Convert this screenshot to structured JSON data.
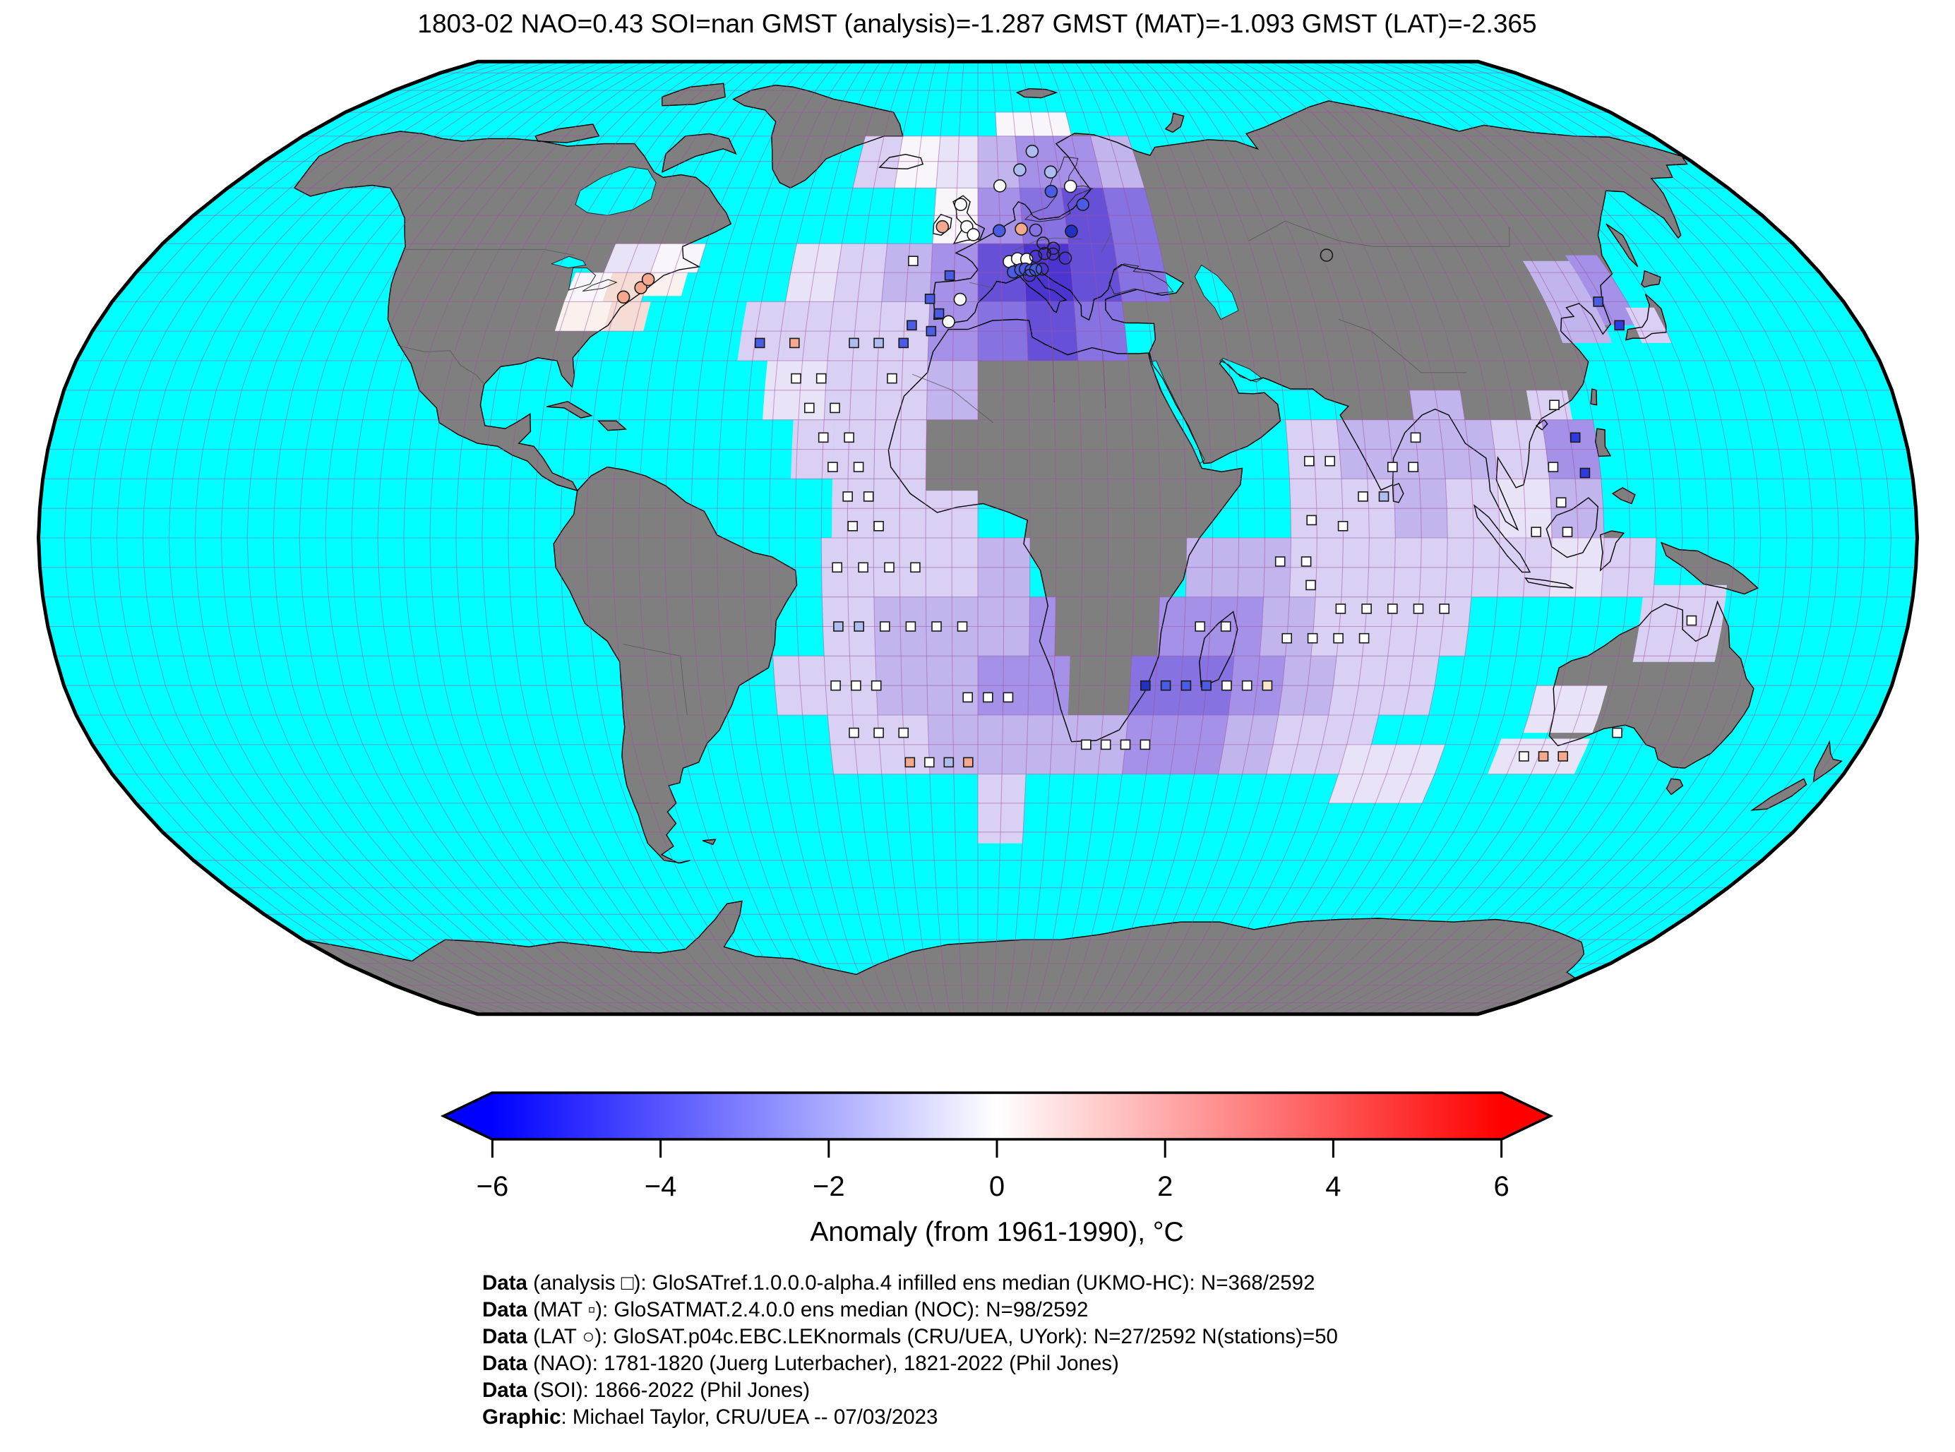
{
  "title": "1803-02 NAO=0.43 SOI=nan GMST (analysis)=-1.287 GMST (MAT)=-1.093 GMST (LAT)=-2.365",
  "key_values": {
    "date": "1803-02",
    "nao": "0.43",
    "soi": "nan",
    "gmst_analysis": "-1.287",
    "gmst_mat": "-1.093",
    "gmst_lat": "-2.365"
  },
  "colorbar": {
    "label": "Anomaly (from 1961-1990), °C",
    "ticks": [
      "−6",
      "−4",
      "−2",
      "0",
      "2",
      "4",
      "6"
    ],
    "tick_values": [
      -6,
      -4,
      -2,
      0,
      2,
      4,
      6
    ],
    "range": [
      -6,
      6
    ],
    "color_neg": "#0000ff",
    "color_mid": "#ffffff",
    "color_pos": "#ff0000"
  },
  "credits": [
    {
      "bold": "Data",
      "rest": " (analysis □): GloSATref.1.0.0.0-alpha.4 infilled ens median (UKMO-HC): N=368/2592"
    },
    {
      "bold": "Data",
      "rest": " (MAT ▫): GloSATMAT.2.4.0.0 ens median (NOC): N=98/2592"
    },
    {
      "bold": "Data",
      "rest": " (LAT ○): GloSAT.p04c.EBC.LEKnormals (CRU/UEA, UYork): N=27/2592 N(stations)=50"
    },
    {
      "bold": "Data",
      "rest": " (NAO): 1781-1820 (Juerg Luterbacher), 1821-2022 (Phil Jones)"
    },
    {
      "bold": "Data",
      "rest": " (SOI): 1866-2022 (Phil Jones)"
    },
    {
      "bold": "Graphic",
      "rest": ": Michael Taylor, CRU/UEA -- 07/03/2023"
    }
  ],
  "map": {
    "projection": "Robinson",
    "ocean_color": "#00ffff",
    "land_color": "#7f7f7f",
    "coast_color": "#000000",
    "grid_color": "#a04fa0",
    "border_color": "#555555",
    "grid_step_deg": 5,
    "palette": {
      "L1": "#e9e3f8",
      "L2": "#d9d0f3",
      "L3": "#c2b5ee",
      "L4": "#a591e8",
      "L5": "#8672e0",
      "L6": "#6750d8",
      "L7": "#4c34d0",
      "W": "#f8f5fb",
      "P1": "#faf0ee",
      "P2": "#f5dcd5",
      "P3": "#f2cabe"
    },
    "marker_fills": {
      "w": "#ffffff",
      "lb": "#aebcf2",
      "b": "#4a5be4",
      "bb": "#2e3be0",
      "db": "#2430c0",
      "s": "#f4a98e",
      "c": "#f8e7c9",
      "o": "none"
    },
    "cells": [
      [
        -30,
        60,
        10,
        10,
        "L2"
      ],
      [
        -20,
        60,
        10,
        10,
        "W"
      ],
      [
        -10,
        60,
        10,
        10,
        "L1"
      ],
      [
        0,
        60,
        10,
        10,
        "L3"
      ],
      [
        10,
        60,
        10,
        10,
        "L4"
      ],
      [
        20,
        60,
        10,
        10,
        "L4"
      ],
      [
        30,
        60,
        10,
        10,
        "L3"
      ],
      [
        5,
        70,
        10,
        5,
        "W"
      ],
      [
        15,
        70,
        10,
        5,
        "W"
      ],
      [
        -10,
        50,
        10,
        10,
        "W"
      ],
      [
        0,
        50,
        10,
        10,
        "L4"
      ],
      [
        10,
        50,
        10,
        10,
        "L5"
      ],
      [
        20,
        50,
        10,
        10,
        "L6"
      ],
      [
        30,
        50,
        10,
        10,
        "L5"
      ],
      [
        -10,
        40,
        10,
        10,
        "L4"
      ],
      [
        0,
        40,
        10,
        10,
        "L6"
      ],
      [
        10,
        40,
        10,
        10,
        "L7"
      ],
      [
        20,
        40,
        10,
        10,
        "L6"
      ],
      [
        30,
        40,
        10,
        10,
        "L5"
      ],
      [
        -20,
        30,
        10,
        10,
        "L2"
      ],
      [
        -10,
        30,
        10,
        10,
        "L4"
      ],
      [
        0,
        30,
        10,
        10,
        "L5"
      ],
      [
        10,
        30,
        10,
        10,
        "L6"
      ],
      [
        20,
        30,
        10,
        10,
        "L5"
      ],
      [
        -20,
        20,
        10,
        10,
        "L2"
      ],
      [
        -10,
        20,
        10,
        10,
        "L3"
      ],
      [
        -40,
        40,
        10,
        10,
        "L1"
      ],
      [
        -30,
        40,
        10,
        10,
        "L2"
      ],
      [
        -20,
        40,
        10,
        10,
        "L3"
      ],
      [
        -48,
        30,
        9,
        10,
        "L2"
      ],
      [
        -39,
        30,
        9,
        10,
        "L2"
      ],
      [
        -30,
        30,
        10,
        10,
        "L2"
      ],
      [
        -42,
        20,
        12,
        10,
        "L1"
      ],
      [
        -30,
        20,
        10,
        10,
        "L2"
      ],
      [
        -36,
        10,
        8,
        10,
        "L2"
      ],
      [
        -28,
        10,
        8,
        10,
        "L2"
      ],
      [
        -20,
        10,
        10,
        10,
        "L2"
      ],
      [
        -28,
        0,
        8,
        10,
        "L2"
      ],
      [
        -20,
        0,
        10,
        10,
        "L2"
      ],
      [
        -10,
        0,
        10,
        8,
        "L2"
      ],
      [
        -30,
        -10,
        10,
        10,
        "L2"
      ],
      [
        -20,
        -10,
        10,
        10,
        "L2"
      ],
      [
        -10,
        -10,
        10,
        10,
        "L2"
      ],
      [
        0,
        -10,
        10,
        10,
        "L3"
      ],
      [
        -30,
        -20,
        10,
        10,
        "L2"
      ],
      [
        -20,
        -20,
        10,
        10,
        "L3"
      ],
      [
        -10,
        -20,
        10,
        10,
        "L3"
      ],
      [
        0,
        -20,
        10,
        10,
        "L3"
      ],
      [
        10,
        -20,
        5,
        10,
        "L4"
      ],
      [
        -40,
        -30,
        10,
        10,
        "L2"
      ],
      [
        -30,
        -30,
        10,
        10,
        "L2"
      ],
      [
        -20,
        -30,
        10,
        10,
        "L3"
      ],
      [
        -10,
        -30,
        10,
        10,
        "L3"
      ],
      [
        0,
        -30,
        10,
        10,
        "L4"
      ],
      [
        10,
        -30,
        8,
        10,
        "L4"
      ],
      [
        -30,
        -40,
        10,
        10,
        "L2"
      ],
      [
        -20,
        -40,
        10,
        10,
        "L2"
      ],
      [
        -10,
        -40,
        10,
        10,
        "L3"
      ],
      [
        0,
        -40,
        10,
        10,
        "L3"
      ],
      [
        10,
        -40,
        10,
        10,
        "L3"
      ],
      [
        20,
        -40,
        10,
        10,
        "L3"
      ],
      [
        0,
        -52,
        10,
        12,
        "L2"
      ],
      [
        -80,
        45,
        10,
        5,
        "L1"
      ],
      [
        -70,
        45,
        10,
        5,
        "W"
      ],
      [
        -86,
        40,
        8,
        5,
        "W"
      ],
      [
        -78,
        40,
        8,
        5,
        "P2"
      ],
      [
        -70,
        41,
        8,
        4,
        "P1"
      ],
      [
        -86,
        35,
        10,
        5,
        "P1"
      ],
      [
        -76,
        35,
        8,
        5,
        "P2"
      ],
      [
        30,
        -30,
        10,
        10,
        "L5"
      ],
      [
        40,
        -30,
        10,
        10,
        "L5"
      ],
      [
        50,
        -30,
        10,
        10,
        "L4"
      ],
      [
        60,
        -30,
        10,
        10,
        "L3"
      ],
      [
        70,
        -30,
        10,
        10,
        "L2"
      ],
      [
        80,
        -30,
        10,
        10,
        "L2"
      ],
      [
        30,
        -40,
        10,
        10,
        "L4"
      ],
      [
        40,
        -40,
        10,
        10,
        "L4"
      ],
      [
        50,
        -40,
        10,
        10,
        "L3"
      ],
      [
        60,
        -40,
        10,
        10,
        "L2"
      ],
      [
        70,
        -40,
        10,
        10,
        "L2"
      ],
      [
        35,
        -20,
        10,
        10,
        "L4"
      ],
      [
        45,
        -20,
        10,
        10,
        "L4"
      ],
      [
        55,
        -20,
        10,
        10,
        "L3"
      ],
      [
        65,
        -20,
        10,
        10,
        "L2"
      ],
      [
        75,
        -20,
        10,
        10,
        "L2"
      ],
      [
        85,
        -20,
        10,
        10,
        "L2"
      ],
      [
        40,
        -10,
        10,
        10,
        "L3"
      ],
      [
        50,
        -10,
        10,
        10,
        "L3"
      ],
      [
        60,
        -10,
        10,
        10,
        "L2"
      ],
      [
        70,
        -10,
        10,
        10,
        "L2"
      ],
      [
        80,
        -10,
        10,
        10,
        "L2"
      ],
      [
        90,
        -10,
        10,
        10,
        "L2"
      ],
      [
        100,
        -10,
        10,
        10,
        "L2"
      ],
      [
        110,
        -10,
        10,
        10,
        "L1"
      ],
      [
        120,
        -10,
        10,
        10,
        "L2"
      ],
      [
        60,
        0,
        10,
        10,
        "L2"
      ],
      [
        70,
        0,
        10,
        10,
        "L2"
      ],
      [
        80,
        0,
        10,
        10,
        "L3"
      ],
      [
        90,
        0,
        10,
        10,
        "L2"
      ],
      [
        100,
        0,
        10,
        10,
        "L1"
      ],
      [
        110,
        0,
        10,
        10,
        "L3"
      ],
      [
        60,
        10,
        10,
        10,
        "L2"
      ],
      [
        70,
        10,
        10,
        10,
        "L3"
      ],
      [
        80,
        10,
        10,
        10,
        "L3"
      ],
      [
        90,
        10,
        10,
        10,
        "L3"
      ],
      [
        100,
        10,
        10,
        10,
        "L2"
      ],
      [
        110,
        10,
        10,
        10,
        "L4"
      ],
      [
        85,
        20,
        10,
        5,
        "L3"
      ],
      [
        108,
        20,
        8,
        5,
        "L2"
      ],
      [
        110,
        -33,
        14,
        8,
        "L1"
      ],
      [
        75,
        -45,
        20,
        10,
        "L1"
      ],
      [
        106,
        -40,
        18,
        6,
        "L1"
      ],
      [
        128,
        -21,
        16,
        13,
        "L2"
      ],
      [
        118,
        33,
        10,
        14,
        "L3"
      ],
      [
        128,
        36,
        7,
        12,
        "L4"
      ],
      [
        134,
        33,
        6,
        6,
        "L2"
      ]
    ],
    "squares": [
      [
        -6,
        44.5,
        "b"
      ],
      [
        -10,
        40.5,
        "b"
      ],
      [
        -8,
        38,
        "b"
      ],
      [
        -13.5,
        36,
        "b"
      ],
      [
        -9.5,
        35,
        "b"
      ],
      [
        -44,
        33,
        "b"
      ],
      [
        -37,
        33,
        "s"
      ],
      [
        -25,
        33,
        "lb"
      ],
      [
        -20,
        33,
        "lb"
      ],
      [
        -15,
        33,
        "b"
      ],
      [
        -36,
        27,
        "w"
      ],
      [
        -31,
        27,
        "w"
      ],
      [
        -17,
        27,
        "w"
      ],
      [
        -33,
        22,
        "w"
      ],
      [
        -28,
        22,
        "w"
      ],
      [
        -30,
        17,
        "w"
      ],
      [
        -25,
        17,
        "w"
      ],
      [
        -28,
        12,
        "w"
      ],
      [
        -23,
        12,
        "w"
      ],
      [
        -25,
        7,
        "w"
      ],
      [
        -21,
        7,
        "w"
      ],
      [
        -24,
        2,
        "w"
      ],
      [
        -19,
        2,
        "w"
      ],
      [
        -27,
        -5,
        "w"
      ],
      [
        -22,
        -5,
        "w"
      ],
      [
        -17,
        -5,
        "w"
      ],
      [
        -12,
        -5,
        "w"
      ],
      [
        -27,
        -15,
        "lb"
      ],
      [
        -23,
        -15,
        "lb"
      ],
      [
        -18,
        -15,
        "w"
      ],
      [
        -13,
        -15,
        "w"
      ],
      [
        -8,
        -15,
        "w"
      ],
      [
        -3,
        -15,
        "w"
      ],
      [
        -28,
        -25,
        "w"
      ],
      [
        -24,
        -25,
        "w"
      ],
      [
        -20,
        -25,
        "w"
      ],
      [
        -2,
        -27,
        "w"
      ],
      [
        2,
        -27,
        "w"
      ],
      [
        6,
        -27,
        "w"
      ],
      [
        -25,
        -33,
        "w"
      ],
      [
        -20,
        -33,
        "w"
      ],
      [
        -15,
        -33,
        "w"
      ],
      [
        -14,
        -38,
        "s"
      ],
      [
        -10,
        -38,
        "w"
      ],
      [
        -6,
        -38,
        "lb"
      ],
      [
        -2,
        -38,
        "s"
      ],
      [
        22,
        -35,
        "w"
      ],
      [
        26,
        -35,
        "w"
      ],
      [
        30,
        -35,
        "w"
      ],
      [
        34,
        -35,
        "w"
      ],
      [
        33,
        -25,
        "db"
      ],
      [
        37,
        -25,
        "b"
      ],
      [
        41,
        -25,
        "b"
      ],
      [
        45,
        -25,
        "b"
      ],
      [
        49,
        -25,
        "w"
      ],
      [
        53,
        -25,
        "w"
      ],
      [
        57,
        -25,
        "c"
      ],
      [
        43,
        -15,
        "w"
      ],
      [
        48,
        -15,
        "w"
      ],
      [
        58,
        -4,
        "w"
      ],
      [
        63,
        -4,
        "w"
      ],
      [
        64,
        -8,
        "w"
      ],
      [
        70,
        -12,
        "w"
      ],
      [
        75,
        -12,
        "w"
      ],
      [
        80,
        -12,
        "w"
      ],
      [
        85,
        -12,
        "w"
      ],
      [
        90,
        -12,
        "w"
      ],
      [
        60,
        -17,
        "w"
      ],
      [
        65,
        -17,
        "w"
      ],
      [
        70,
        -17,
        "w"
      ],
      [
        75,
        -17,
        "w"
      ],
      [
        64,
        13,
        "w"
      ],
      [
        68,
        13,
        "w"
      ],
      [
        64,
        3,
        "w"
      ],
      [
        70,
        2,
        "w"
      ],
      [
        85,
        17,
        "w"
      ],
      [
        80,
        12,
        "w"
      ],
      [
        84,
        12,
        "w"
      ],
      [
        74,
        7,
        "w"
      ],
      [
        78,
        7,
        "lb"
      ],
      [
        113,
        22.5,
        "w"
      ],
      [
        116,
        17,
        "bb"
      ],
      [
        117,
        11,
        "bb"
      ],
      [
        111,
        12,
        "w"
      ],
      [
        112,
        6,
        "w"
      ],
      [
        113,
        1,
        "w"
      ],
      [
        107,
        1,
        "w"
      ],
      [
        129,
        40,
        "b"
      ],
      [
        131,
        36,
        "bb"
      ],
      [
        138,
        -14,
        "w"
      ],
      [
        129,
        -33,
        "w"
      ],
      [
        112,
        -37,
        "w"
      ],
      [
        116,
        -37,
        "s"
      ],
      [
        120,
        -37,
        "s"
      ],
      [
        -14,
        47,
        "w"
      ]
    ],
    "circles": [
      [
        -8,
        53,
        "s"
      ],
      [
        -4,
        57,
        "w"
      ],
      [
        -2.5,
        53,
        "w"
      ],
      [
        -1,
        51.6,
        "w"
      ],
      [
        4.8,
        52.3,
        "b"
      ],
      [
        9.8,
        52.6,
        "s"
      ],
      [
        13,
        52.4,
        "o"
      ],
      [
        21,
        52.2,
        "db"
      ],
      [
        17.5,
        59.4,
        "b"
      ],
      [
        24.5,
        57,
        "b"
      ],
      [
        22.3,
        60.3,
        "w"
      ],
      [
        18,
        63,
        "lb"
      ],
      [
        5.3,
        60.4,
        "w"
      ],
      [
        10.4,
        63.4,
        "lb"
      ],
      [
        14,
        67,
        "lb"
      ],
      [
        6.8,
        46.9,
        "w"
      ],
      [
        8.6,
        47.4,
        "w"
      ],
      [
        10.6,
        47.3,
        "w"
      ],
      [
        12.6,
        47.8,
        "o"
      ],
      [
        14.6,
        48.3,
        "o"
      ],
      [
        16.4,
        48.2,
        "o"
      ],
      [
        7.6,
        45.1,
        "b"
      ],
      [
        9.2,
        45.5,
        "b"
      ],
      [
        10.2,
        45.6,
        "b"
      ],
      [
        11.4,
        45.4,
        "b"
      ],
      [
        12.4,
        45.5,
        "b"
      ],
      [
        13.8,
        45.6,
        "o"
      ],
      [
        14.4,
        50.1,
        "o"
      ],
      [
        16.6,
        49.2,
        "o"
      ],
      [
        19,
        47.5,
        "o"
      ],
      [
        11,
        44.5,
        "o"
      ],
      [
        -3.7,
        40.4,
        "w"
      ],
      [
        -6,
        36.6,
        "w"
      ],
      [
        76,
        48,
        "o"
      ],
      [
        -71,
        42.4,
        "s"
      ],
      [
        -74,
        40.8,
        "s"
      ],
      [
        -70,
        43.8,
        "s"
      ]
    ]
  }
}
